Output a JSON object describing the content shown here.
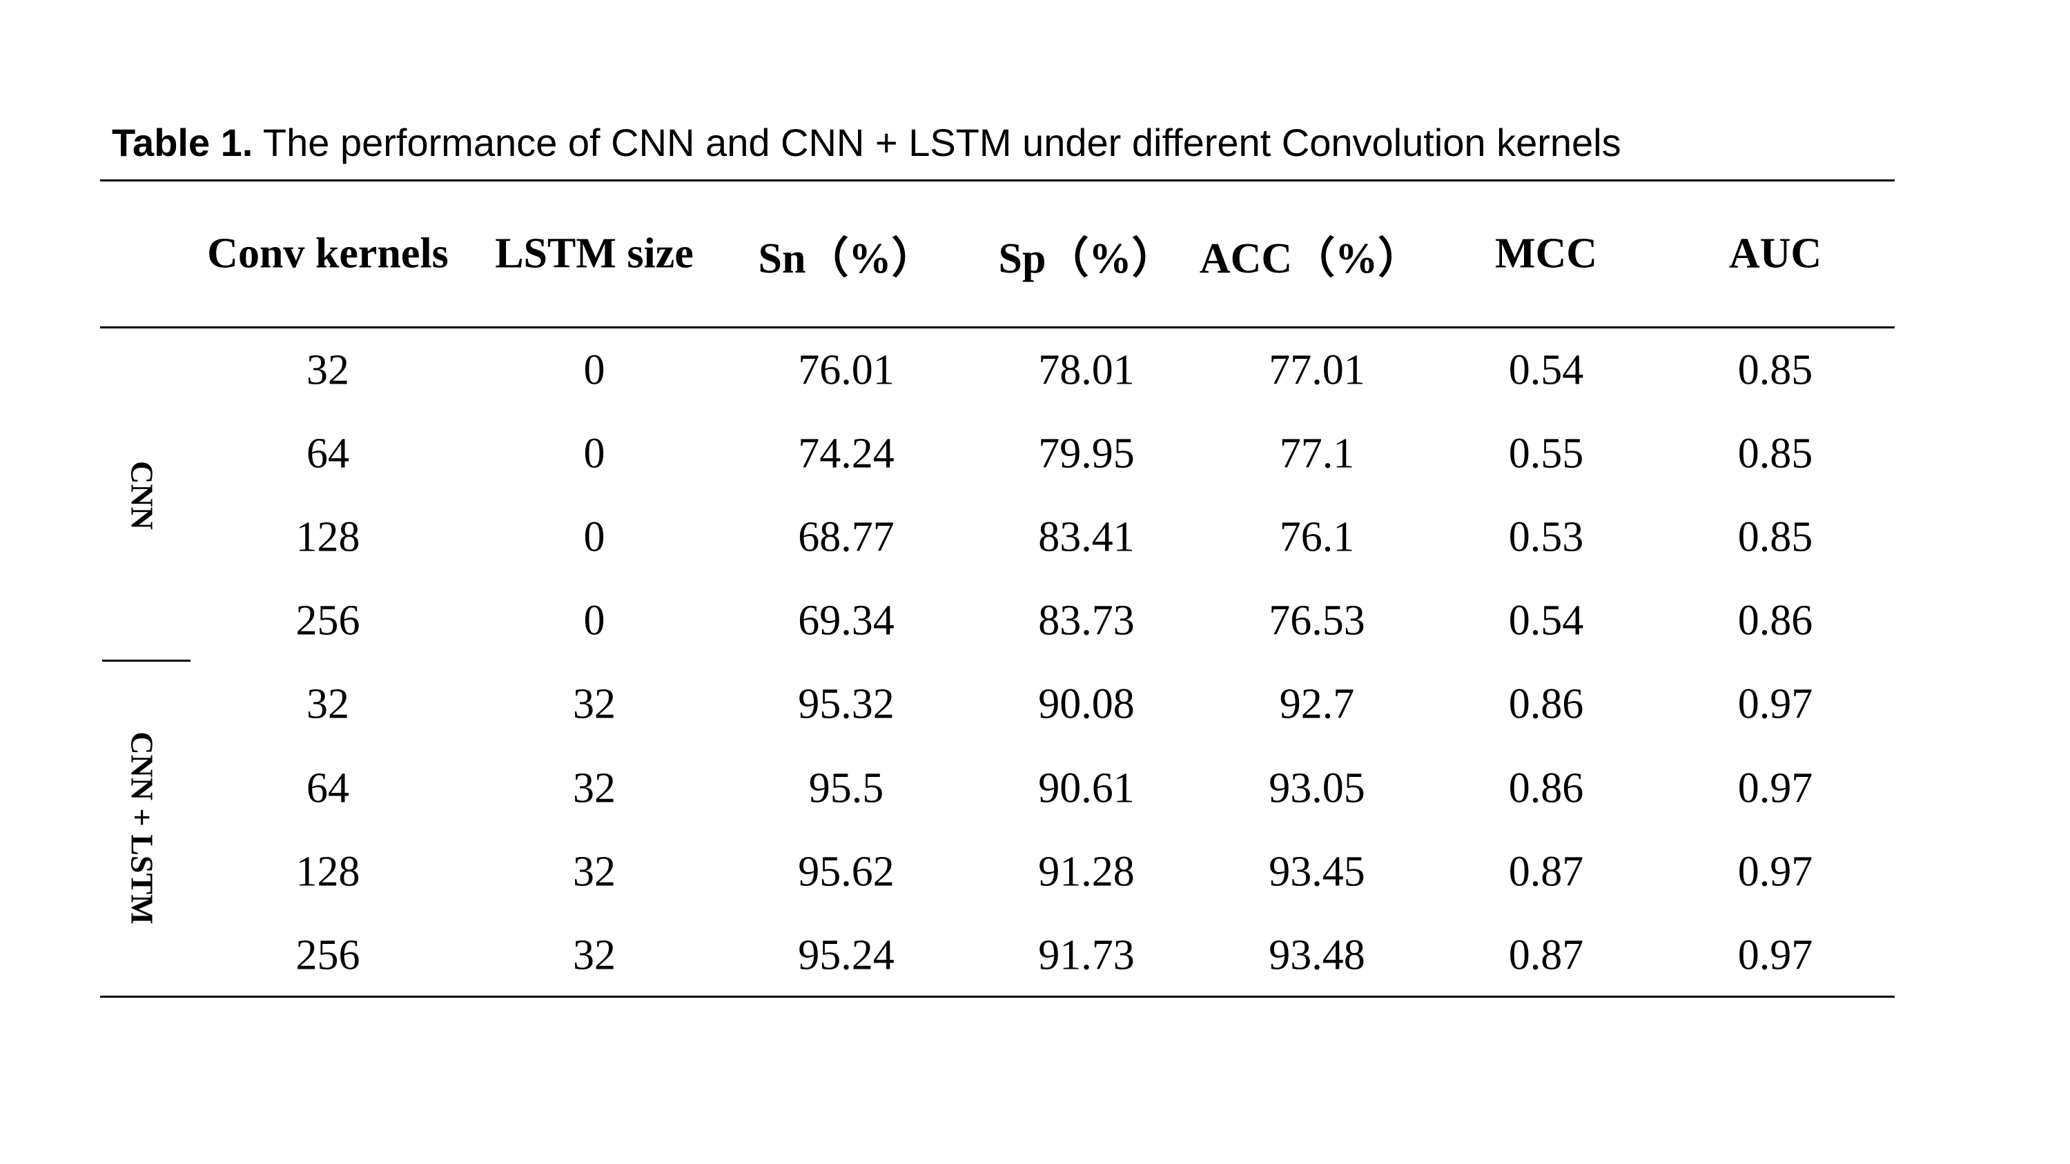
{
  "caption": {
    "label": "Table 1.",
    "text": " The performance of CNN and CNN + LSTM under different Convolution kernels"
  },
  "table": {
    "headers": [
      "Conv kernels",
      "LSTM size",
      "Sn（%）",
      "Sp（%）",
      "ACC（%）",
      "MCC",
      "AUC"
    ],
    "groups": [
      "CNN",
      "CNN + LSTM"
    ],
    "rows": [
      [
        "32",
        "0",
        "76.01",
        "78.01",
        "77.01",
        "0.54",
        "0.85"
      ],
      [
        "64",
        "0",
        "74.24",
        "79.95",
        "77.1",
        "0.55",
        "0.85"
      ],
      [
        "128",
        "0",
        "68.77",
        "83.41",
        "76.1",
        "0.53",
        "0.85"
      ],
      [
        "256",
        "0",
        "69.34",
        "83.73",
        "76.53",
        "0.54",
        "0.86"
      ],
      [
        "32",
        "32",
        "95.32",
        "90.08",
        "92.7",
        "0.86",
        "0.97"
      ],
      [
        "64",
        "32",
        "95.5",
        "90.61",
        "93.05",
        "0.86",
        "0.97"
      ],
      [
        "128",
        "32",
        "95.62",
        "91.28",
        "93.45",
        "0.87",
        "0.97"
      ],
      [
        "256",
        "32",
        "95.24",
        "91.73",
        "93.48",
        "0.87",
        "0.97"
      ]
    ]
  }
}
